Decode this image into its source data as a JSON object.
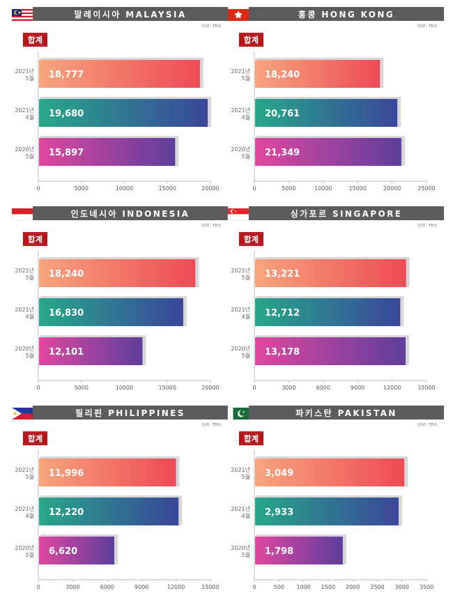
{
  "unit_label": "(단위 : TEU)",
  "badge_label": "합계",
  "colors": {
    "header_bg": "#5c5c5c",
    "badge_bg": "#b5161c",
    "bar_2021_05": [
      "#f6a57f",
      "#ee4a55"
    ],
    "bar_2021_04": [
      "#27a889",
      "#39469a"
    ],
    "bar_2020_05": [
      "#e0479f",
      "#5d3e9c"
    ]
  },
  "categories": [
    {
      "year": "2021년",
      "month": "5월",
      "style": "bar_2021_05"
    },
    {
      "year": "2021년",
      "month": "4월",
      "style": "bar_2021_04"
    },
    {
      "year": "2020년",
      "month": "5월",
      "style": "bar_2020_05"
    }
  ],
  "chart_data": [
    {
      "type": "bar",
      "orientation": "horizontal",
      "title": "말레이시아 MALAYSIA",
      "flag": "malaysia-flag-icon",
      "values": [
        18777,
        19680,
        15897
      ],
      "labels": [
        "18,777",
        "19,680",
        "15,897"
      ],
      "xlim": [
        0,
        20000
      ],
      "ticks": [
        0,
        5000,
        10000,
        15000,
        20000
      ],
      "tick_labels": [
        "0",
        "5000",
        "10000",
        "15000",
        "20000"
      ]
    },
    {
      "type": "bar",
      "orientation": "horizontal",
      "title": "홍콩 HONG KONG",
      "flag": "hong-kong-flag-icon",
      "values": [
        18240,
        20761,
        21349
      ],
      "labels": [
        "18,240",
        "20,761",
        "21,349"
      ],
      "xlim": [
        0,
        25000
      ],
      "ticks": [
        0,
        5000,
        10000,
        15000,
        20000,
        25000
      ],
      "tick_labels": [
        "0",
        "5000",
        "10000",
        "15000",
        "20000",
        "25000"
      ]
    },
    {
      "type": "bar",
      "orientation": "horizontal",
      "title": "인도네시아 INDONESIA",
      "flag": "indonesia-flag-icon",
      "values": [
        18240,
        16830,
        12101
      ],
      "labels": [
        "18,240",
        "16,830",
        "12,101"
      ],
      "xlim": [
        0,
        20000
      ],
      "ticks": [
        0,
        5000,
        10000,
        15000,
        20000
      ],
      "tick_labels": [
        "0",
        "5000",
        "10000",
        "15000",
        "20000"
      ]
    },
    {
      "type": "bar",
      "orientation": "horizontal",
      "title": "싱가포르 SINGAPORE",
      "flag": "singapore-flag-icon",
      "values": [
        13221,
        12712,
        13178
      ],
      "labels": [
        "13,221",
        "12,712",
        "13,178"
      ],
      "xlim": [
        0,
        15000
      ],
      "ticks": [
        0,
        3000,
        6000,
        9000,
        12000,
        15000
      ],
      "tick_labels": [
        "0",
        "3000",
        "6000",
        "9000",
        "12000",
        "15000"
      ]
    },
    {
      "type": "bar",
      "orientation": "horizontal",
      "title": "필리핀 PHILIPPINES",
      "flag": "philippines-flag-icon",
      "values": [
        11996,
        12220,
        6620
      ],
      "labels": [
        "11,996",
        "12,220",
        "6,620"
      ],
      "xlim": [
        0,
        15000
      ],
      "ticks": [
        0,
        3000,
        6000,
        9000,
        12000,
        15000
      ],
      "tick_labels": [
        "0",
        "3000",
        "6000",
        "9000",
        "12000",
        "15000"
      ]
    },
    {
      "type": "bar",
      "orientation": "horizontal",
      "title": "파키스탄 PAKISTAN",
      "flag": "pakistan-flag-icon",
      "values": [
        3049,
        2933,
        1798
      ],
      "labels": [
        "3,049",
        "2,933",
        "1,798"
      ],
      "xlim": [
        0,
        3500
      ],
      "ticks": [
        0,
        500,
        1000,
        1500,
        2000,
        2500,
        3000,
        3500
      ],
      "tick_labels": [
        "0",
        "500",
        "1000",
        "1500",
        "2000",
        "2500",
        "3000",
        "3500"
      ]
    }
  ]
}
